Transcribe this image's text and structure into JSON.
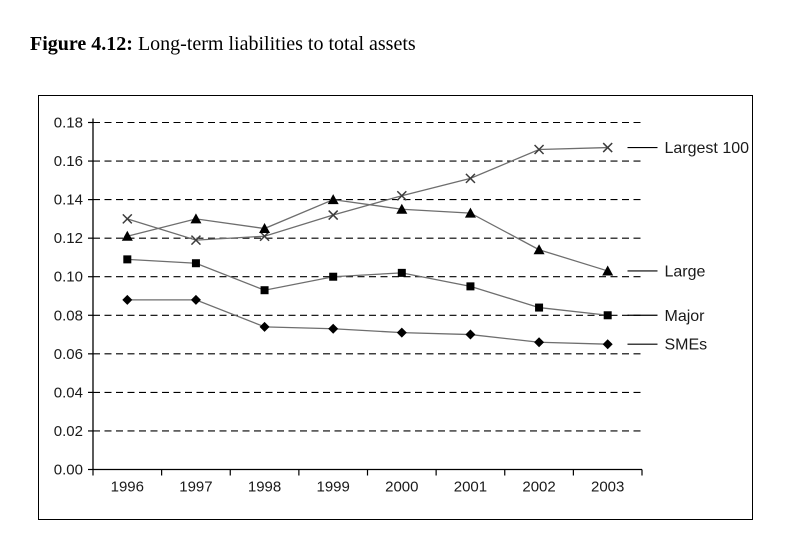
{
  "figure": {
    "label": "Figure 4.12:",
    "title": " Long-term liabilities to total assets"
  },
  "colors": {
    "ink": "#000000",
    "series_line": "#6e6e6e",
    "x_marker": "#3c3c3c",
    "background": "#ffffff"
  },
  "chart_data": {
    "type": "line",
    "title": "Long-term liabilities to total assets",
    "categories": [
      "1996",
      "1997",
      "1998",
      "1999",
      "2000",
      "2001",
      "2002",
      "2003"
    ],
    "series": [
      {
        "name": "Largest 100",
        "marker": "x",
        "values": [
          0.13,
          0.119,
          0.121,
          0.132,
          0.142,
          0.151,
          0.166,
          0.167
        ]
      },
      {
        "name": "Large",
        "marker": "triangle",
        "values": [
          0.121,
          0.13,
          0.125,
          0.14,
          0.135,
          0.133,
          0.114,
          0.103
        ]
      },
      {
        "name": "Major",
        "marker": "square",
        "values": [
          0.109,
          0.107,
          0.093,
          0.1,
          0.102,
          0.095,
          0.084,
          0.08
        ]
      },
      {
        "name": "SMEs",
        "marker": "diamond",
        "values": [
          0.088,
          0.088,
          0.074,
          0.073,
          0.071,
          0.07,
          0.066,
          0.065
        ]
      }
    ],
    "xlabel": "",
    "ylabel": "",
    "ylim": [
      0.0,
      0.18
    ],
    "ytick_step": 0.02,
    "y_ticks": [
      "0.00",
      "0.02",
      "0.04",
      "0.06",
      "0.08",
      "0.10",
      "0.12",
      "0.14",
      "0.16",
      "0.18"
    ],
    "grid": "horizontal-dashed",
    "legend_position": "right-edge-labels"
  }
}
